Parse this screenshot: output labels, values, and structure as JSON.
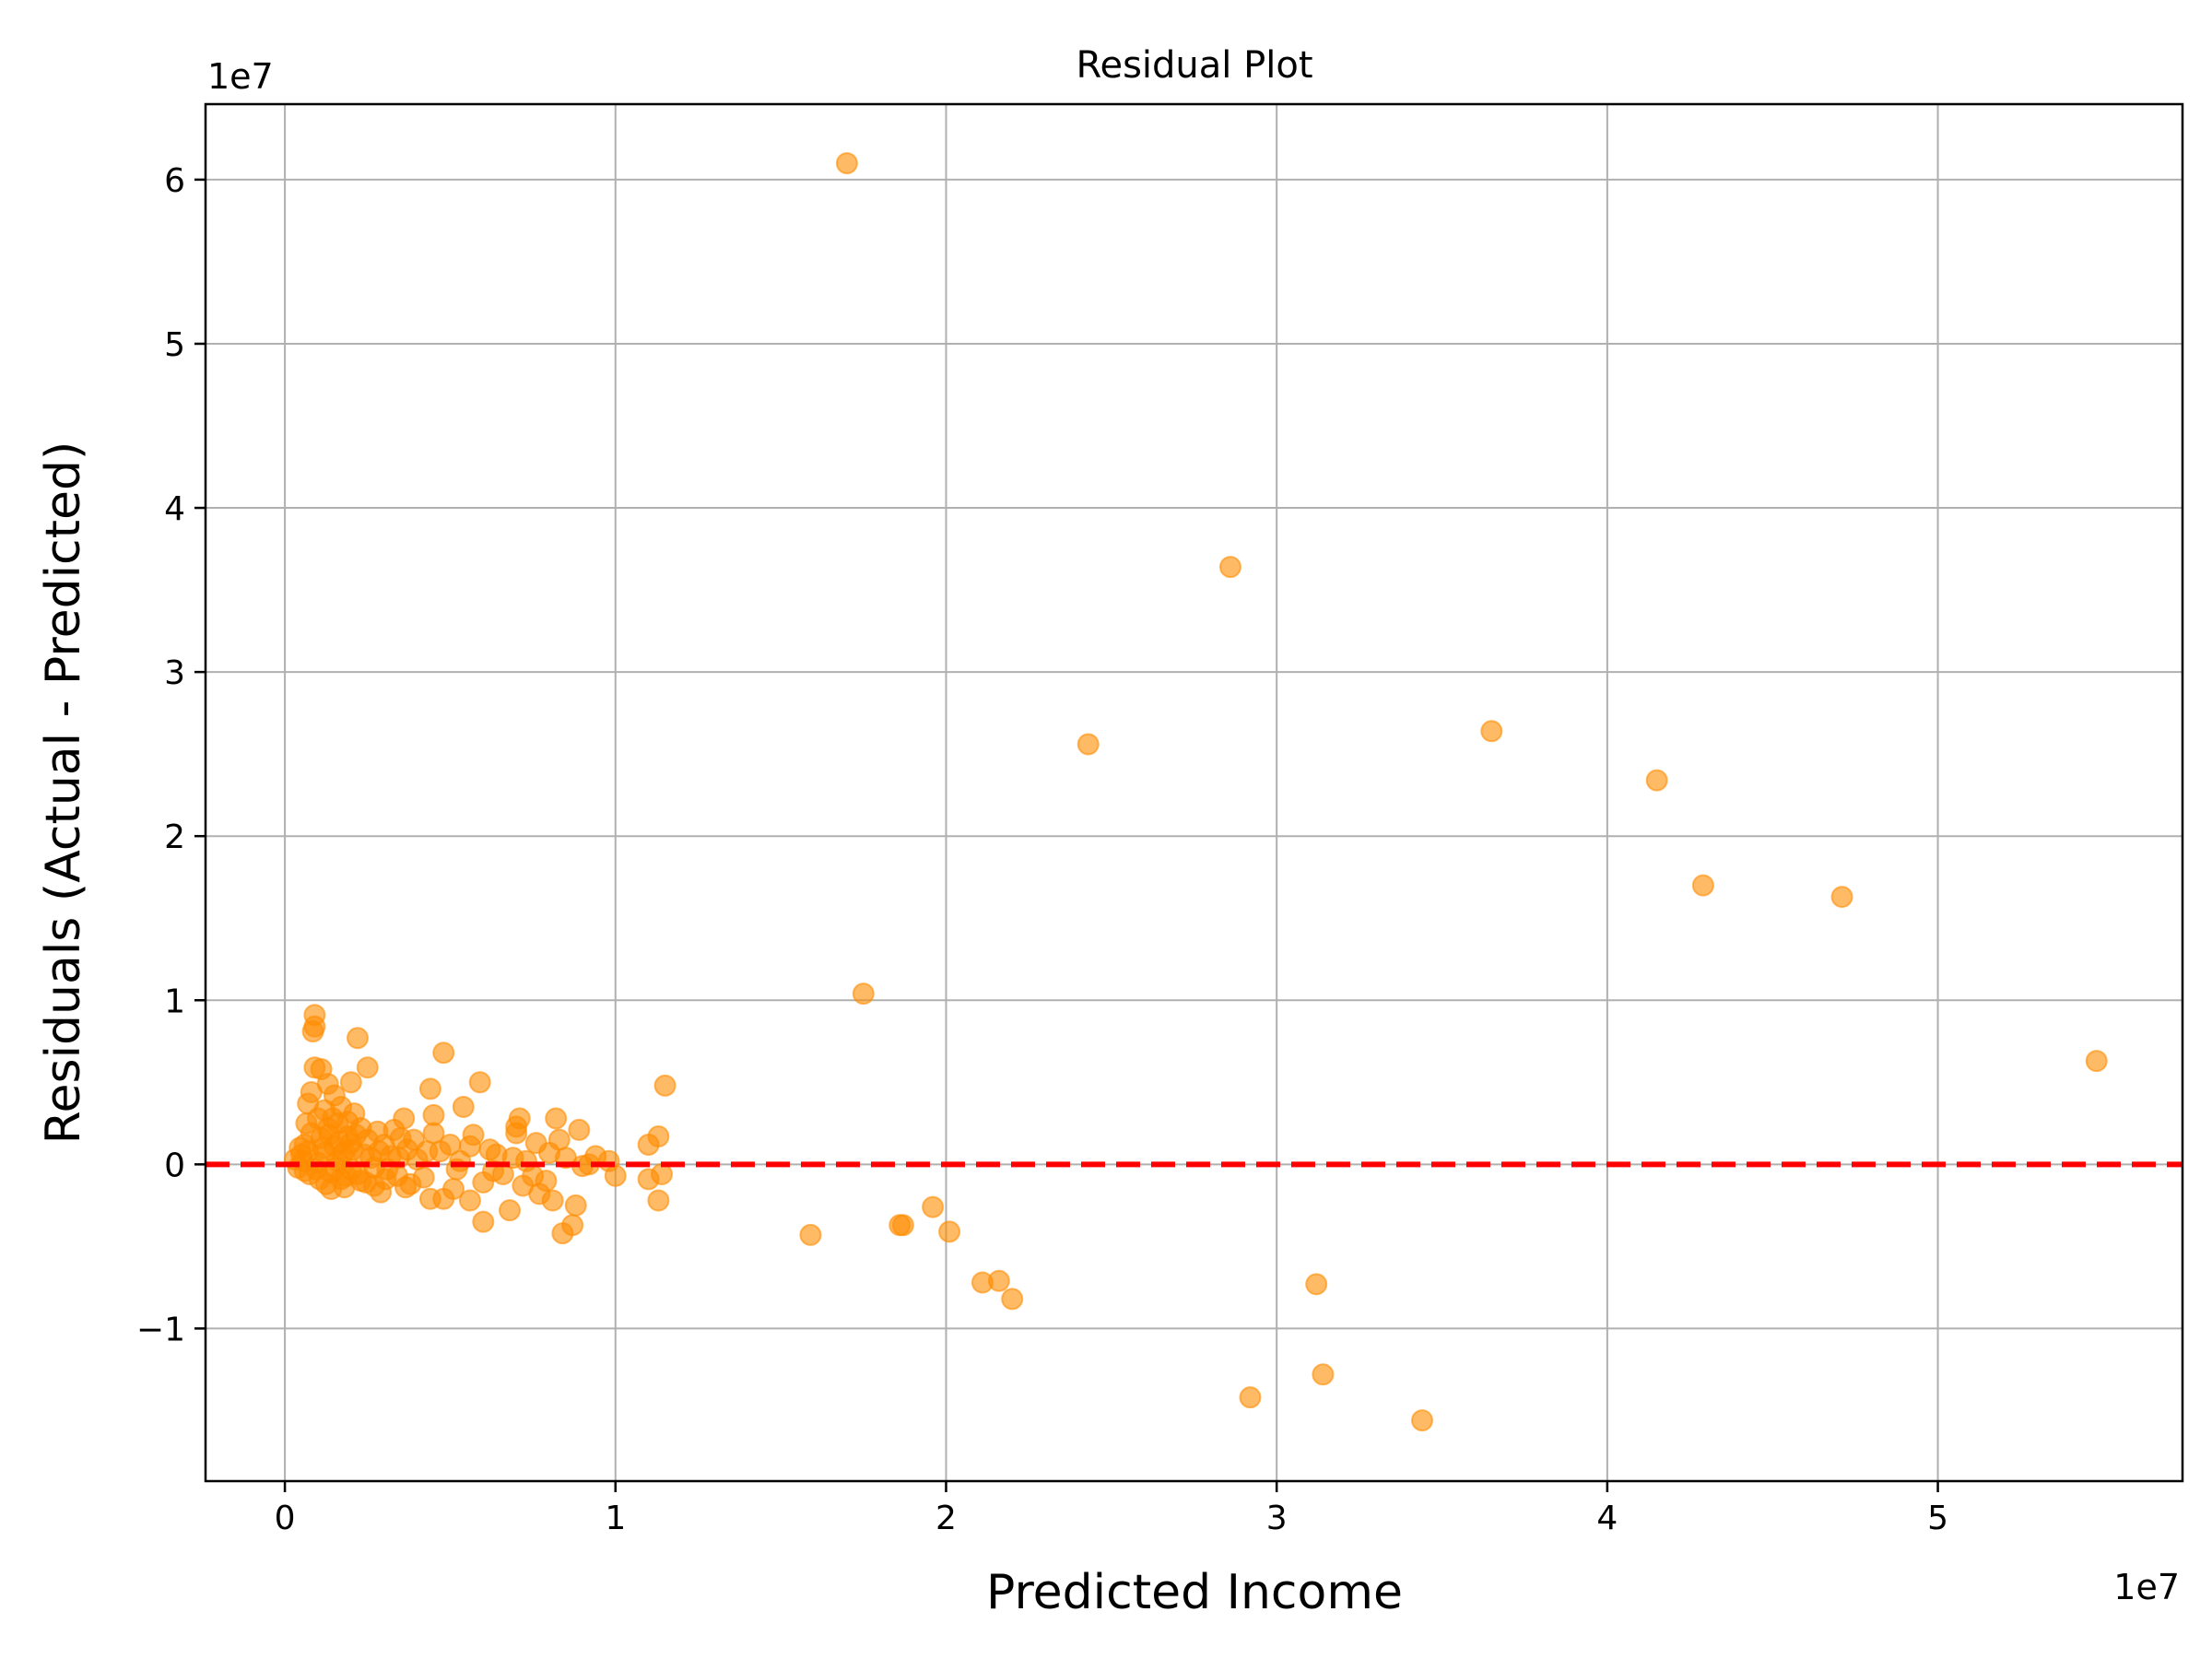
{
  "chart_data": {
    "type": "scatter",
    "title": "Residual Plot",
    "xlabel": "Predicted Income",
    "ylabel": "Residuals (Actual - Predicted)",
    "x_offset_label": "1e7",
    "y_offset_label": "1e7",
    "xlim": [
      -2400000,
      57400000
    ],
    "ylim": [
      -19300000,
      64600000
    ],
    "x_ticks": [
      0,
      10000000,
      20000000,
      30000000,
      40000000,
      50000000
    ],
    "x_tick_labels": [
      "0",
      "1",
      "2",
      "3",
      "4",
      "5"
    ],
    "y_ticks": [
      -10000000,
      0,
      10000000,
      20000000,
      30000000,
      40000000,
      50000000,
      60000000
    ],
    "y_tick_labels": [
      "−1",
      "0",
      "1",
      "2",
      "3",
      "4",
      "5",
      "6"
    ],
    "grid": true,
    "marker_color": "#ff8c00",
    "marker_alpha": 0.6,
    "reference_line": {
      "y": 0,
      "color": "#ff0000",
      "style": "dashed"
    },
    "points": [
      [
        17000000,
        61000000
      ],
      [
        28600000,
        36400000
      ],
      [
        24300000,
        25600000
      ],
      [
        36500000,
        26400000
      ],
      [
        41500000,
        23400000
      ],
      [
        42900000,
        17000000
      ],
      [
        47100000,
        16300000
      ],
      [
        54800000,
        6300000
      ],
      [
        17500000,
        10400000
      ],
      [
        15900000,
        -4300000
      ],
      [
        18600000,
        -3700000
      ],
      [
        18700000,
        -3700000
      ],
      [
        19600000,
        -2600000
      ],
      [
        20100000,
        -4100000
      ],
      [
        21100000,
        -7200000
      ],
      [
        21600000,
        -7100000
      ],
      [
        22000000,
        -8200000
      ],
      [
        31200000,
        -7300000
      ],
      [
        29200000,
        -14200000
      ],
      [
        31400000,
        -12800000
      ],
      [
        34400000,
        -15600000
      ],
      [
        11500000,
        4800000
      ],
      [
        11300000,
        1700000
      ],
      [
        11000000,
        1200000
      ],
      [
        11400000,
        -600000
      ],
      [
        11000000,
        -900000
      ],
      [
        11300000,
        -2200000
      ],
      [
        10000000,
        -700000
      ],
      [
        9800000,
        200000
      ],
      [
        9400000,
        500000
      ],
      [
        9200000,
        0
      ],
      [
        8900000,
        2100000
      ],
      [
        8800000,
        -2500000
      ],
      [
        8700000,
        -3700000
      ],
      [
        8400000,
        -4200000
      ],
      [
        8200000,
        2800000
      ],
      [
        8300000,
        1500000
      ],
      [
        8000000,
        700000
      ],
      [
        7900000,
        -1000000
      ],
      [
        8100000,
        -2200000
      ],
      [
        7600000,
        1300000
      ],
      [
        7500000,
        -700000
      ],
      [
        7700000,
        -1800000
      ],
      [
        7100000,
        2800000
      ],
      [
        7000000,
        2300000
      ],
      [
        7000000,
        1900000
      ],
      [
        6900000,
        400000
      ],
      [
        6800000,
        -2800000
      ],
      [
        6600000,
        -600000
      ],
      [
        6400000,
        600000
      ],
      [
        6200000,
        900000
      ],
      [
        6000000,
        -1100000
      ],
      [
        5900000,
        5000000
      ],
      [
        6000000,
        -3500000
      ],
      [
        5700000,
        1800000
      ],
      [
        5600000,
        1100000
      ],
      [
        5600000,
        -2200000
      ],
      [
        5400000,
        3500000
      ],
      [
        5300000,
        200000
      ],
      [
        5200000,
        -300000
      ],
      [
        4800000,
        6800000
      ],
      [
        4800000,
        -2100000
      ],
      [
        4700000,
        800000
      ],
      [
        4400000,
        4600000
      ],
      [
        4500000,
        3000000
      ],
      [
        4500000,
        1900000
      ],
      [
        4300000,
        800000
      ],
      [
        4400000,
        -2100000
      ],
      [
        4000000,
        300000
      ],
      [
        3800000,
        -1200000
      ],
      [
        3700000,
        900000
      ],
      [
        3600000,
        2800000
      ],
      [
        3500000,
        1600000
      ],
      [
        3400000,
        -700000
      ],
      [
        3200000,
        500000
      ],
      [
        3000000,
        1200000
      ],
      [
        2900000,
        -1700000
      ],
      [
        2800000,
        2000000
      ],
      [
        2700000,
        -200000
      ],
      [
        2500000,
        5900000
      ],
      [
        2500000,
        1500000
      ],
      [
        2400000,
        600000
      ],
      [
        2300000,
        -1000000
      ],
      [
        2200000,
        7700000
      ],
      [
        2100000,
        3100000
      ],
      [
        2000000,
        5000000
      ],
      [
        2000000,
        -300000
      ],
      [
        1900000,
        1700000
      ],
      [
        1800000,
        800000
      ],
      [
        1800000,
        -1400000
      ],
      [
        1700000,
        3500000
      ],
      [
        1600000,
        2500000
      ],
      [
        1500000,
        4200000
      ],
      [
        1500000,
        1100000
      ],
      [
        1400000,
        -500000
      ],
      [
        1400000,
        -1500000
      ],
      [
        1300000,
        4900000
      ],
      [
        1300000,
        2200000
      ],
      [
        1200000,
        3300000
      ],
      [
        1200000,
        700000
      ],
      [
        1100000,
        5800000
      ],
      [
        1100000,
        1600000
      ],
      [
        1000000,
        2800000
      ],
      [
        1000000,
        100000
      ],
      [
        900000,
        9100000
      ],
      [
        900000,
        8400000
      ],
      [
        850000,
        8100000
      ],
      [
        900000,
        5900000
      ],
      [
        800000,
        4400000
      ],
      [
        800000,
        1900000
      ],
      [
        700000,
        3700000
      ],
      [
        700000,
        800000
      ],
      [
        650000,
        2500000
      ],
      [
        600000,
        1200000
      ],
      [
        600000,
        -400000
      ],
      [
        500000,
        600000
      ],
      [
        450000,
        1000000
      ],
      [
        400000,
        -200000
      ],
      [
        300000,
        300000
      ],
      [
        1600000,
        200000
      ],
      [
        1700000,
        -900000
      ],
      [
        1900000,
        2600000
      ],
      [
        2000000,
        1300000
      ],
      [
        2200000,
        -600000
      ],
      [
        2300000,
        2200000
      ],
      [
        2600000,
        400000
      ],
      [
        2700000,
        -1300000
      ],
      [
        3100000,
        -300000
      ],
      [
        3300000,
        2100000
      ],
      [
        3900000,
        1500000
      ],
      [
        4200000,
        -800000
      ],
      [
        5000000,
        1200000
      ],
      [
        5100000,
        -1500000
      ],
      [
        6300000,
        -400000
      ],
      [
        7300000,
        200000
      ],
      [
        7200000,
        -1300000
      ],
      [
        8500000,
        400000
      ],
      [
        9000000,
        -100000
      ],
      [
        1050000,
        -900000
      ],
      [
        1150000,
        1000000
      ],
      [
        1250000,
        -1200000
      ],
      [
        1350000,
        1800000
      ],
      [
        1450000,
        2800000
      ],
      [
        1550000,
        -200000
      ],
      [
        1650000,
        1400000
      ],
      [
        1750000,
        600000
      ],
      [
        1850000,
        -700000
      ],
      [
        2050000,
        900000
      ],
      [
        2150000,
        1800000
      ],
      [
        2450000,
        -1100000
      ],
      [
        2850000,
        800000
      ],
      [
        3050000,
        -900000
      ],
      [
        3450000,
        400000
      ],
      [
        3650000,
        -1400000
      ],
      [
        750000,
        -600000
      ],
      [
        950000,
        -300000
      ],
      [
        550000,
        200000
      ]
    ]
  }
}
